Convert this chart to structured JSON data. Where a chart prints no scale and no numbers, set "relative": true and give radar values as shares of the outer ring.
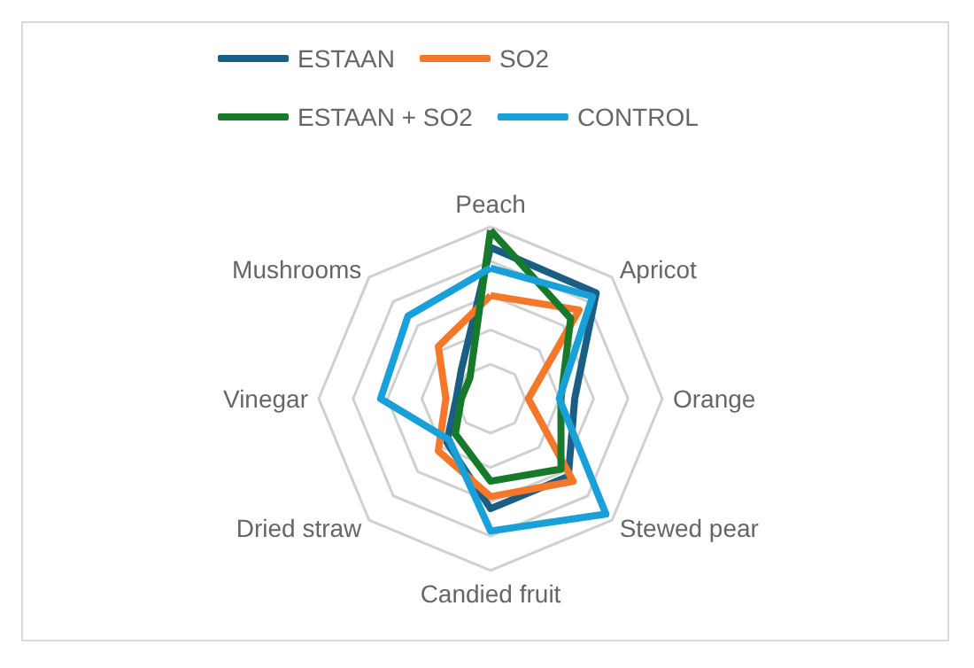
{
  "chart_data": {
    "type": "radar",
    "relative": true,
    "grid": true,
    "legend": "top",
    "marker": "none",
    "categories": [
      "Peach",
      "Apricot",
      "Orange",
      "Stewed pear",
      "Candied fruit",
      "Dried straw",
      "Vinegar",
      "Mushrooms"
    ],
    "series": [
      {
        "name": "ESTAAN",
        "color": "#1b5e84",
        "values": [
          0.88,
          0.87,
          0.49,
          0.64,
          0.64,
          0.36,
          0.2,
          0.24
        ]
      },
      {
        "name": "SO2",
        "color": "#f4772a",
        "values": [
          0.6,
          0.73,
          0.22,
          0.68,
          0.57,
          0.43,
          0.26,
          0.43
        ]
      },
      {
        "name": "ESTAAN + SO2",
        "color": "#177a2a",
        "values": [
          0.98,
          0.66,
          0.41,
          0.58,
          0.48,
          0.29,
          0.17,
          0.17
        ]
      },
      {
        "name": "CONTROL",
        "color": "#1aa0d8",
        "values": [
          0.76,
          0.84,
          0.4,
          0.95,
          0.77,
          0.34,
          0.64,
          0.68
        ]
      }
    ]
  }
}
